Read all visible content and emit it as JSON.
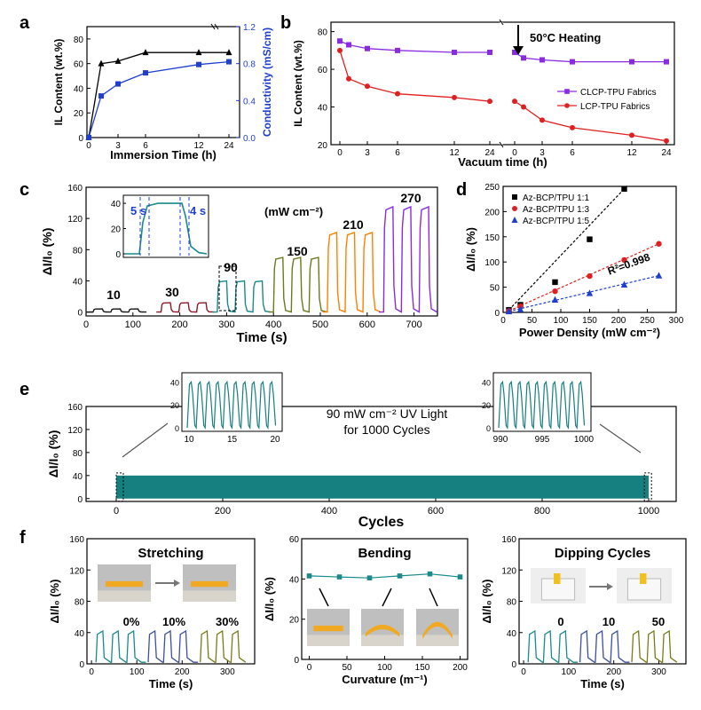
{
  "chart_data": [
    {
      "panel": "a",
      "type": "line",
      "xlabel": "Immersion Time (h)",
      "ylabel": "IL Content (wt.%)",
      "ylabel_right": "Conductivity (mS/cm)",
      "xlim": [
        0,
        24
      ],
      "ylim": [
        0,
        90
      ],
      "ylim_right": [
        0,
        1.2
      ],
      "xticks": [
        "0",
        "3",
        "6",
        "12",
        "24"
      ],
      "yticks": [
        "0",
        "20",
        "40",
        "60",
        "80"
      ],
      "yticks_right": [
        "0.0",
        "0.4",
        "0.8",
        "1.2"
      ],
      "x_display": [
        0,
        1,
        3,
        6,
        12,
        24
      ],
      "series": [
        {
          "axis": "left",
          "color": "#000000",
          "marker": "triangle",
          "values": [
            0,
            60,
            62,
            69,
            69,
            69
          ]
        },
        {
          "axis": "right",
          "color": "#1f3fd0",
          "marker": "square",
          "values": [
            0.0,
            0.45,
            0.58,
            0.7,
            0.79,
            0.82
          ]
        }
      ]
    },
    {
      "panel": "b",
      "type": "line",
      "xlabel": "Vacuum time (h)",
      "ylabel": "IL Content (wt.%)",
      "ylim": [
        20,
        85
      ],
      "yticks": [
        "20",
        "40",
        "60",
        "80"
      ],
      "xticks": [
        "0",
        "3",
        "6",
        "12",
        "24",
        "0",
        "3",
        "6",
        "12",
        "24"
      ],
      "annotation": "50°C Heating",
      "legend": [
        "CLCP-TPU Fabrics",
        "LCP-TPU Fabrics"
      ],
      "x_display": [
        0,
        1,
        3,
        6,
        12,
        24
      ],
      "series": [
        {
          "color": "#8a2be2",
          "marker": "square",
          "seg1": [
            75,
            73,
            71,
            70,
            69,
            69
          ],
          "seg2": [
            69,
            66,
            65,
            64,
            64,
            64
          ]
        },
        {
          "color": "#e02020",
          "marker": "circle",
          "seg1": [
            70,
            55,
            51,
            47,
            45,
            43
          ],
          "seg2": [
            43,
            40,
            33,
            29,
            25,
            22
          ]
        }
      ]
    },
    {
      "panel": "c",
      "type": "line",
      "xlabel": "Time (s)",
      "ylabel": "ΔI/I₀ (%)",
      "xlim": [
        0,
        750
      ],
      "ylim": [
        -5,
        160
      ],
      "xticks": [
        "0",
        "100",
        "200",
        "300",
        "400",
        "500",
        "600",
        "700"
      ],
      "yticks": [
        "0",
        "40",
        "80",
        "120",
        "160"
      ],
      "unit_note": "(mW cm⁻²)",
      "groups": [
        {
          "label": "10",
          "color": "#1a1a1a",
          "amp": 4,
          "start": 15
        },
        {
          "label": "30",
          "color": "#8b1a2a",
          "amp": 12,
          "start": 160
        },
        {
          "label": "90",
          "color": "#1a8a8a",
          "amp": 40,
          "start": 280
        },
        {
          "label": "150",
          "color": "#6b7a1a",
          "amp": 70,
          "start": 400
        },
        {
          "label": "210",
          "color": "#ff8000",
          "amp": 102,
          "start": 515
        },
        {
          "label": "270",
          "color": "#8a2be2",
          "amp": 135,
          "start": 635
        }
      ],
      "inset": {
        "ylim": [
          0,
          40
        ],
        "yticks": [
          "0",
          "20",
          "40"
        ],
        "labels": [
          "5 s",
          "4 s"
        ]
      }
    },
    {
      "panel": "d",
      "type": "scatter",
      "xlabel": "Power Density (mW cm⁻²)",
      "ylabel": "ΔI/I₀ (%)",
      "xlim": [
        0,
        300
      ],
      "ylim": [
        0,
        250
      ],
      "xticks": [
        "0",
        "50",
        "100",
        "150",
        "200",
        "250",
        "300"
      ],
      "yticks": [
        "0",
        "50",
        "100",
        "150",
        "200",
        "250"
      ],
      "annotation": "R²=0.998",
      "series": [
        {
          "name": "Az-BCP/TPU 1:1",
          "color": "#000000",
          "marker": "square",
          "x": [
            10,
            30,
            90,
            150,
            210
          ],
          "y": [
            5,
            15,
            60,
            145,
            245
          ]
        },
        {
          "name": "Az-BCP/TPU 1:3",
          "color": "#e02020",
          "marker": "circle",
          "x": [
            10,
            30,
            90,
            150,
            210,
            270
          ],
          "y": [
            3,
            12,
            42,
            72,
            104,
            136
          ]
        },
        {
          "name": "Az-BCP/TPU 1:5",
          "color": "#1f3fd0",
          "marker": "triangle",
          "x": [
            10,
            30,
            90,
            150,
            210,
            270
          ],
          "y": [
            2,
            6,
            25,
            38,
            55,
            73
          ]
        }
      ]
    },
    {
      "panel": "e",
      "type": "line",
      "xlabel": "Cycles",
      "ylabel": "ΔI/I₀ (%)",
      "xlim": [
        0,
        1000
      ],
      "ylim": [
        -5,
        160
      ],
      "xticks": [
        "0",
        "200",
        "400",
        "600",
        "800",
        "1000"
      ],
      "yticks": [
        "0",
        "40",
        "80",
        "120",
        "160"
      ],
      "band": [
        0,
        40
      ],
      "color": "#167f7f",
      "annotation": [
        "90 mW cm⁻² UV Light",
        "for 1000 Cycles"
      ],
      "insets": [
        {
          "xticks": [
            "10",
            "15",
            "20"
          ],
          "yticks": [
            "0",
            "20",
            "40"
          ]
        },
        {
          "xticks": [
            "990",
            "995",
            "1000"
          ],
          "yticks": [
            "0",
            "20",
            "40"
          ]
        }
      ]
    },
    {
      "panel": "f1",
      "type": "line",
      "title": "Stretching",
      "xlabel": "Time (s)",
      "ylabel": "ΔI/I₀ (%)",
      "xlim": [
        -10,
        360
      ],
      "ylim": [
        0,
        160
      ],
      "xticks": [
        "0",
        "100",
        "200",
        "300"
      ],
      "yticks": [
        "0",
        "40",
        "80",
        "120",
        "160"
      ],
      "labels": [
        "0%",
        "10%",
        "30%"
      ],
      "amp": 42
    },
    {
      "panel": "f2",
      "type": "line",
      "title": "Bending",
      "xlabel": "Curvature (m⁻¹)",
      "ylabel": "ΔI/I₀ (%)",
      "xlim": [
        -10,
        210
      ],
      "ylim": [
        0,
        60
      ],
      "xticks": [
        "0",
        "50",
        "100",
        "150",
        "200"
      ],
      "yticks": [
        "0",
        "20",
        "40",
        "60"
      ],
      "x": [
        0,
        40,
        80,
        120,
        160,
        200
      ],
      "values": [
        41.5,
        41,
        40.5,
        41.5,
        42.5,
        41
      ]
    },
    {
      "panel": "f3",
      "type": "line",
      "title": "Dipping Cycles",
      "xlabel": "Time (s)",
      "ylabel": "ΔI/I₀ (%)",
      "xlim": [
        -10,
        360
      ],
      "ylim": [
        0,
        160
      ],
      "xticks": [
        "0",
        "100",
        "200",
        "300"
      ],
      "yticks": [
        "0",
        "40",
        "80",
        "120",
        "160"
      ],
      "labels": [
        "0",
        "10",
        "50"
      ],
      "amp": 42
    }
  ],
  "panel_labels": [
    "a",
    "b",
    "c",
    "d",
    "e",
    "f"
  ]
}
